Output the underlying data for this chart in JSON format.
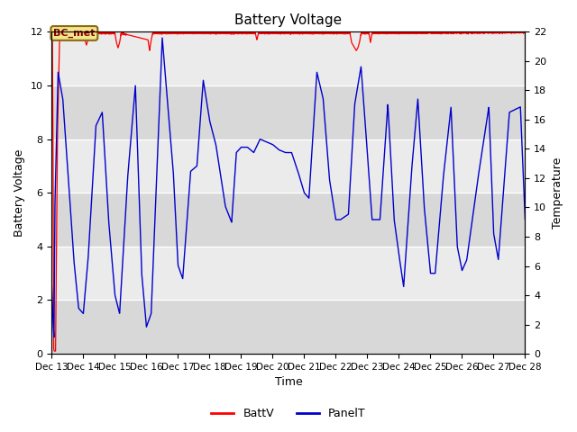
{
  "title": "Battery Voltage",
  "xlabel": "Time",
  "ylabel_left": "Battery Voltage",
  "ylabel_right": "Temperature",
  "annotation_text": "BC_met",
  "xlim_start": 13,
  "xlim_end": 28,
  "ylim_left": [
    0,
    12
  ],
  "ylim_right": [
    0,
    22
  ],
  "batt_color": "#ff0000",
  "panel_color": "#0000cc",
  "bg_light": "#ebebeb",
  "bg_dark": "#d8d8d8",
  "legend_batt": "BattV",
  "legend_panel": "PanelT",
  "x_tick_labels": [
    "Dec 13",
    "Dec 14",
    "Dec 15",
    "Dec 16",
    "Dec 17",
    "Dec 18",
    "Dec 19",
    "Dec 20",
    "Dec 21",
    "Dec 22",
    "Dec 23",
    "Dec 24",
    "Dec 25",
    "Dec 26",
    "Dec 27",
    "Dec 28"
  ],
  "x_tick_positions": [
    13,
    14,
    15,
    16,
    17,
    18,
    19,
    20,
    21,
    22,
    23,
    24,
    25,
    26,
    27,
    28
  ],
  "yticks_left": [
    0,
    2,
    4,
    6,
    8,
    10,
    12
  ],
  "yticks_right": [
    0,
    2,
    4,
    6,
    8,
    10,
    12,
    14,
    16,
    18,
    20,
    22
  ],
  "panel_kp_x": [
    13.0,
    13.04,
    13.07,
    13.1,
    13.2,
    13.35,
    13.5,
    13.7,
    13.85,
    14.0,
    14.15,
    14.4,
    14.6,
    14.8,
    15.0,
    15.15,
    15.4,
    15.65,
    15.85,
    16.0,
    16.15,
    16.5,
    16.85,
    17.0,
    17.15,
    17.4,
    17.6,
    17.8,
    18.0,
    18.2,
    18.5,
    18.7,
    18.85,
    19.0,
    19.2,
    19.4,
    19.6,
    19.8,
    20.0,
    20.2,
    20.4,
    20.6,
    20.8,
    21.0,
    21.15,
    21.4,
    21.6,
    21.8,
    22.0,
    22.15,
    22.4,
    22.6,
    22.8,
    23.0,
    23.15,
    23.4,
    23.65,
    23.85,
    24.0,
    24.15,
    24.4,
    24.6,
    24.8,
    25.0,
    25.15,
    25.4,
    25.65,
    25.85,
    26.0,
    26.15,
    26.5,
    26.85,
    27.0,
    27.15,
    27.5,
    27.85,
    28.0
  ],
  "panel_kp_y": [
    2.5,
    1.2,
    0.6,
    5.5,
    10.5,
    9.5,
    7.0,
    3.5,
    1.7,
    1.5,
    3.5,
    8.5,
    9.0,
    5.0,
    2.2,
    1.5,
    6.5,
    10.0,
    3.0,
    1.0,
    1.5,
    11.8,
    6.8,
    3.3,
    2.8,
    6.8,
    7.0,
    10.2,
    8.7,
    7.8,
    5.5,
    4.9,
    7.5,
    7.7,
    7.7,
    7.5,
    8.0,
    7.9,
    7.8,
    7.6,
    7.5,
    7.5,
    6.8,
    6.0,
    5.8,
    10.5,
    9.5,
    6.5,
    5.0,
    5.0,
    5.2,
    9.3,
    10.7,
    7.5,
    5.0,
    5.0,
    9.3,
    5.0,
    3.7,
    2.5,
    6.8,
    9.5,
    5.5,
    3.0,
    3.0,
    6.5,
    9.2,
    4.0,
    3.1,
    3.5,
    6.5,
    9.2,
    4.5,
    3.5,
    9.0,
    9.2,
    5.0
  ],
  "batt_kp_x": [
    13.0,
    13.02,
    13.04,
    13.06,
    13.08,
    13.12,
    13.18,
    13.25,
    14.0,
    14.05,
    14.1,
    14.15,
    14.2,
    15.0,
    15.05,
    15.1,
    15.15,
    15.2,
    16.05,
    16.1,
    16.15,
    16.2,
    19.45,
    19.5,
    19.55,
    22.45,
    22.5,
    22.6,
    22.65,
    22.7,
    22.75,
    22.8,
    23.05,
    23.1,
    23.15,
    28.0
  ],
  "batt_kp_y": [
    11.95,
    11.8,
    8.0,
    0.2,
    0.1,
    0.1,
    8.0,
    11.95,
    11.95,
    11.7,
    11.5,
    11.7,
    11.95,
    11.95,
    11.6,
    11.4,
    11.6,
    11.95,
    11.7,
    11.3,
    11.7,
    11.95,
    11.95,
    11.7,
    11.95,
    11.95,
    11.6,
    11.4,
    11.3,
    11.4,
    11.6,
    11.95,
    11.95,
    11.6,
    11.95,
    11.98
  ]
}
